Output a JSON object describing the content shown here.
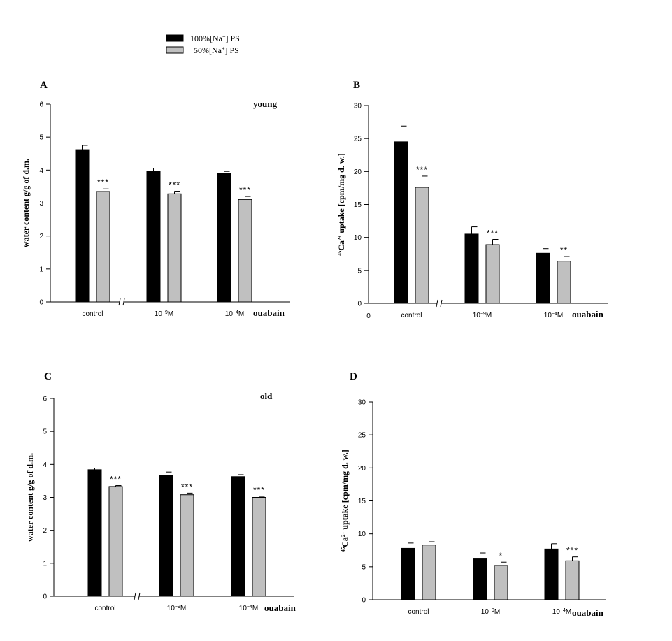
{
  "legend": {
    "entries": [
      {
        "label": "100%[Na",
        "sup": "+",
        "after": "] PS",
        "color": "#000000"
      },
      {
        "label": "50%[Na",
        "sup": "+",
        "after": "] PS",
        "color": "#c0c0c0"
      }
    ]
  },
  "chart_data": [
    {
      "panel": "A",
      "type": "bar",
      "annotation": "young",
      "ylabel": "water content g/g of d.m.",
      "ylim": [
        0,
        6
      ],
      "yticks": [
        0,
        1,
        2,
        3,
        4,
        5,
        6
      ],
      "xlabel": "ouabain",
      "x_origin_label": "",
      "categories": [
        {
          "label": "control"
        },
        {
          "label": "10",
          "sup": "−9",
          "unit": "M"
        },
        {
          "label": "10",
          "sup": "−4",
          "unit": "M"
        }
      ],
      "series": [
        {
          "values": [
            4.62,
            3.97,
            3.9
          ],
          "errors": [
            0.13,
            0.09,
            0.06
          ],
          "color": "#000000"
        },
        {
          "values": [
            3.35,
            3.28,
            3.11
          ],
          "errors": [
            0.08,
            0.08,
            0.09
          ],
          "color": "#c0c0c0"
        }
      ],
      "significance": [
        "***",
        "***",
        "***"
      ],
      "axis_break": true
    },
    {
      "panel": "B",
      "type": "bar",
      "annotation": "",
      "ylabel_sup": "45",
      "ylabel_main": "Ca",
      "ylabel_sup2": "2+",
      "ylabel_rest": " uptake [cpm/mg d. w.]",
      "ylim": [
        0,
        30
      ],
      "yticks": [
        0,
        5,
        10,
        15,
        20,
        25,
        30
      ],
      "xlabel": "ouabain",
      "x_origin_label": "0",
      "categories": [
        {
          "label": "control"
        },
        {
          "label": "10",
          "sup": "−9",
          "unit": "M"
        },
        {
          "label": "10",
          "sup": "−4",
          "unit": "M"
        }
      ],
      "series": [
        {
          "values": [
            24.5,
            10.5,
            7.6
          ],
          "errors": [
            2.4,
            1.1,
            0.7
          ],
          "color": "#000000"
        },
        {
          "values": [
            17.6,
            8.9,
            6.4
          ],
          "errors": [
            1.7,
            0.8,
            0.7
          ],
          "color": "#c0c0c0"
        }
      ],
      "significance": [
        "***",
        "***",
        "**"
      ],
      "axis_break": true
    },
    {
      "panel": "C",
      "type": "bar",
      "annotation": "old",
      "ylabel": "water content g/g of d.m.",
      "ylim": [
        0,
        6
      ],
      "yticks": [
        0,
        1,
        2,
        3,
        4,
        5,
        6
      ],
      "xlabel": "ouabain",
      "x_origin_label": "",
      "categories": [
        {
          "label": "control"
        },
        {
          "label": "10",
          "sup": "−9",
          "unit": "M"
        },
        {
          "label": "10",
          "sup": "−4",
          "unit": "M"
        }
      ],
      "series": [
        {
          "values": [
            3.84,
            3.67,
            3.63
          ],
          "errors": [
            0.05,
            0.1,
            0.06
          ],
          "color": "#000000"
        },
        {
          "values": [
            3.33,
            3.08,
            3.0
          ],
          "errors": [
            0.03,
            0.05,
            0.03
          ],
          "color": "#c0c0c0"
        }
      ],
      "significance": [
        "***",
        "***",
        "***"
      ],
      "axis_break": true
    },
    {
      "panel": "D",
      "type": "bar",
      "annotation": "",
      "ylabel_sup": "45",
      "ylabel_main": "Ca",
      "ylabel_sup2": "2+",
      "ylabel_rest": " uptake [cpm/mg d. w.]",
      "ylim": [
        0,
        30
      ],
      "yticks": [
        0,
        5,
        10,
        15,
        20,
        25,
        30
      ],
      "xlabel": "ouabain",
      "x_origin_label": "",
      "categories": [
        {
          "label": "control"
        },
        {
          "label": "10",
          "sup": "−9",
          "unit": "M"
        },
        {
          "label": "10",
          "sup": "−4",
          "unit": "M"
        }
      ],
      "series": [
        {
          "values": [
            7.8,
            6.3,
            7.7
          ],
          "errors": [
            0.8,
            0.8,
            0.8
          ],
          "color": "#000000"
        },
        {
          "values": [
            8.3,
            5.2,
            5.9
          ],
          "errors": [
            0.5,
            0.5,
            0.6
          ],
          "color": "#c0c0c0"
        }
      ],
      "significance": [
        "",
        "*",
        "***"
      ],
      "axis_break": false
    }
  ]
}
